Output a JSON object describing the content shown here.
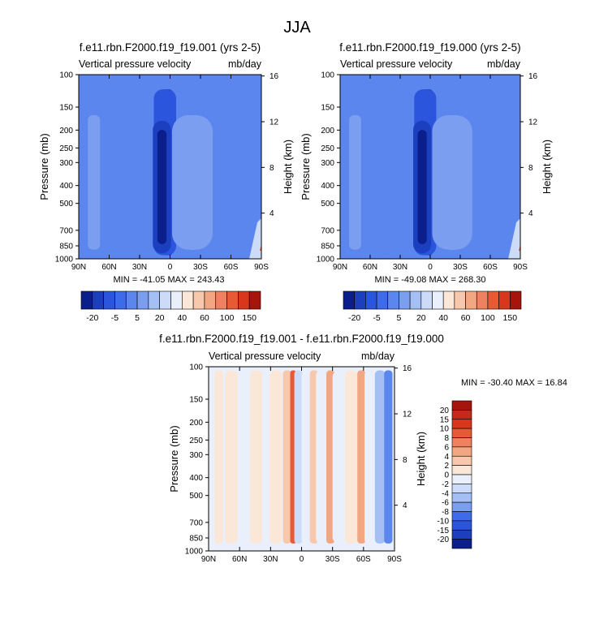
{
  "figure_title": "JJA",
  "ramp_base": [
    "#0b1f8c",
    "#1c3fbf",
    "#2b55dc",
    "#3e6bea",
    "#5a86ee",
    "#7c9ef0",
    "#a4bff4",
    "#cbdbf8",
    "#e9f0fb",
    "#fbe7d8",
    "#f7c8ac",
    "#f2a682",
    "#ee8160",
    "#e85a36",
    "#d8361d",
    "#a6150c"
  ],
  "ramp_diff": [
    "#0b1f8c",
    "#1c3fbf",
    "#2b55dc",
    "#3e6bea",
    "#5a86ee",
    "#7c9ef0",
    "#a4bff4",
    "#cbdbf8",
    "#e9f0fb",
    "#fbe7d8",
    "#f7c8ac",
    "#f2a682",
    "#ee8160",
    "#e85a36",
    "#d8361d",
    "#a6150c"
  ],
  "chart_data": [
    {
      "type": "heatmap",
      "id": "p1",
      "title": "f.e11.rbn.F2000.f19_f19.001 (yrs 2-5)",
      "left_label": "Vertical pressure velocity",
      "right_label": "mb/day",
      "ylabel": "Pressure (mb)",
      "y2label": "Height (km)",
      "xticks": [
        "90N",
        "60N",
        "30N",
        "0",
        "30S",
        "60S",
        "90S"
      ],
      "yticks": [
        "100",
        "150",
        "200",
        "250",
        "300",
        "400",
        "500",
        "700",
        "850",
        "1000"
      ],
      "y2ticks": [
        "16",
        "12",
        "8",
        "4"
      ],
      "min_max_text": "MIN = -41.05  MAX = 243.43",
      "colorbar_labels": [
        "-20",
        "-5",
        "5",
        "20",
        "40",
        "60",
        "100",
        "150"
      ],
      "features": [
        {
          "lat": 2,
          "width": 5,
          "level": 0
        },
        {
          "lat": 5,
          "width": 11,
          "level": 2
        },
        {
          "lat": -22,
          "width": 8,
          "level": 7
        },
        {
          "lat": -22,
          "width": 14,
          "level": 6
        },
        {
          "lat": -22,
          "width": 20,
          "level": 5
        },
        {
          "lat": 38,
          "width": 14,
          "level": 4
        },
        {
          "lat": -52,
          "width": 9,
          "level": 4
        },
        {
          "lat": 75,
          "width": 6,
          "level": 5
        }
      ],
      "ascending_lower": {
        "lat": 8,
        "width": 9,
        "level": 1
      },
      "polar_hotspot": true
    },
    {
      "type": "heatmap",
      "id": "p2",
      "title": "f.e11.rbn.F2000.f19_f19.000 (yrs 2-5)",
      "left_label": "Vertical pressure velocity",
      "right_label": "mb/day",
      "ylabel": "Pressure (mb)",
      "y2label": "Height (km)",
      "xticks": [
        "90N",
        "60N",
        "30N",
        "0",
        "30S",
        "60S",
        "90S"
      ],
      "yticks": [
        "100",
        "150",
        "200",
        "250",
        "300",
        "400",
        "500",
        "700",
        "850",
        "1000"
      ],
      "y2ticks": [
        "16",
        "12",
        "8",
        "4"
      ],
      "min_max_text": "MIN = -49.08  MAX = 268.30",
      "colorbar_labels": [
        "-20",
        "-5",
        "5",
        "20",
        "40",
        "60",
        "100",
        "150"
      ],
      "features": [
        {
          "lat": 2,
          "width": 5,
          "level": 0
        },
        {
          "lat": 5,
          "width": 11,
          "level": 2
        },
        {
          "lat": -22,
          "width": 8,
          "level": 7
        },
        {
          "lat": -22,
          "width": 14,
          "level": 6
        },
        {
          "lat": -22,
          "width": 20,
          "level": 5
        },
        {
          "lat": 38,
          "width": 14,
          "level": 4
        },
        {
          "lat": -52,
          "width": 9,
          "level": 4
        },
        {
          "lat": 75,
          "width": 6,
          "level": 5
        }
      ],
      "ascending_lower": {
        "lat": 8,
        "width": 9,
        "level": 1
      },
      "polar_hotspot": true
    },
    {
      "type": "heatmap",
      "id": "p3",
      "title": "f.e11.rbn.F2000.f19_f19.001 - f.e11.rbn.F2000.f19_f19.000",
      "left_label": "Vertical pressure velocity",
      "right_label": "mb/day",
      "ylabel": "Pressure (mb)",
      "y2label": "Height (km)",
      "xticks": [
        "90N",
        "60N",
        "30N",
        "0",
        "30S",
        "60S",
        "90S"
      ],
      "yticks": [
        "100",
        "150",
        "200",
        "250",
        "300",
        "400",
        "500",
        "700",
        "850",
        "1000"
      ],
      "y2ticks": [
        "16",
        "12",
        "8",
        "4"
      ],
      "min_max_text": "MIN = -30.40  MAX = 16.84",
      "colorbar_labels": [
        "20",
        "15",
        "10",
        "8",
        "6",
        "4",
        "2",
        "0",
        "-2",
        "-4",
        "-6",
        "-8",
        "-10",
        "-15",
        "-20"
      ],
      "stripes": [
        {
          "lat": 80,
          "width": 4,
          "level": 9
        },
        {
          "lat": 68,
          "width": 6,
          "level": 9
        },
        {
          "lat": 55,
          "width": 5,
          "level": 8
        },
        {
          "lat": 44,
          "width": 6,
          "level": 9
        },
        {
          "lat": 33,
          "width": 5,
          "level": 8
        },
        {
          "lat": 25,
          "width": 6,
          "level": 9
        },
        {
          "lat": 14,
          "width": 4,
          "level": 10
        },
        {
          "lat": 8,
          "width": 3,
          "level": 13
        },
        {
          "lat": 3,
          "width": 4,
          "level": 7
        },
        {
          "lat": -5,
          "width": 5,
          "level": 8
        },
        {
          "lat": -12,
          "width": 4,
          "level": 10
        },
        {
          "lat": -20,
          "width": 6,
          "level": 8
        },
        {
          "lat": -28,
          "width": 4,
          "level": 11
        },
        {
          "lat": -38,
          "width": 8,
          "level": 8
        },
        {
          "lat": -48,
          "width": 6,
          "level": 9
        },
        {
          "lat": -58,
          "width": 4,
          "level": 11
        },
        {
          "lat": -66,
          "width": 5,
          "level": 8
        },
        {
          "lat": -76,
          "width": 5,
          "level": 6
        },
        {
          "lat": -84,
          "width": 4,
          "level": 4
        }
      ]
    }
  ]
}
